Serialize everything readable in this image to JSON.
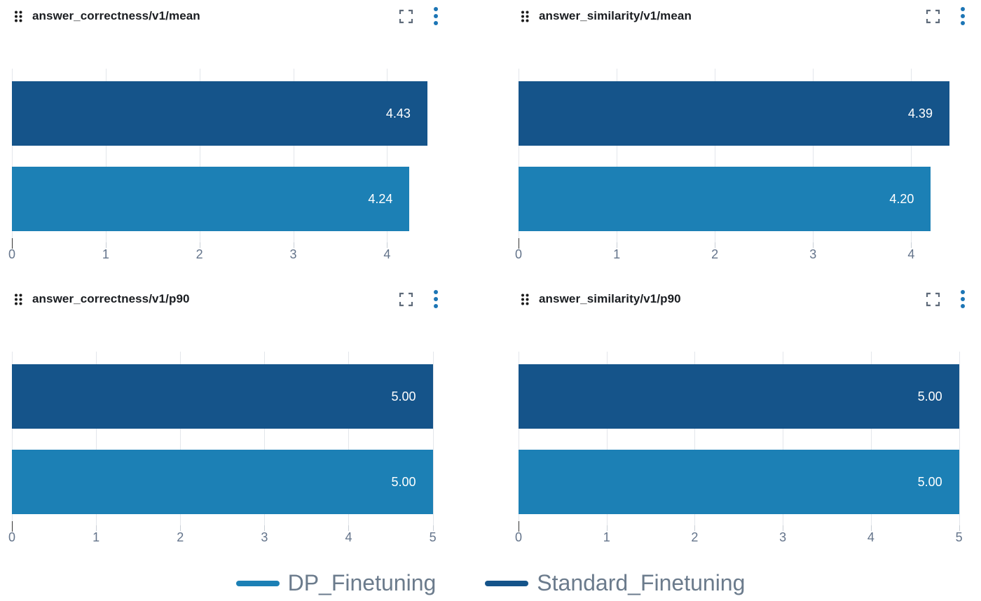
{
  "colors": {
    "dp": "#1C80B5",
    "standard": "#15548A",
    "kebab_icon": "#1C75B5",
    "fullscreen_icon": "#5F6B7A",
    "drag_handle": "#1B1B1B",
    "gridline": "#E3E6EB",
    "tick_mark": "#C9CFD6",
    "zero_tick": "#333333",
    "tick_label": "#64748B",
    "title_text": "#1A1D21",
    "value_label": "#FFFFFF",
    "legend_label": "#6B7B8C"
  },
  "icons": {
    "drag": "drag-handle-icon",
    "fullscreen": "fullscreen-icon",
    "menu": "kebab-menu-icon"
  },
  "legend": {
    "items": [
      {
        "label": "DP_Finetuning",
        "color_key": "dp"
      },
      {
        "label": "Standard_Finetuning",
        "color_key": "standard"
      }
    ]
  },
  "chart_data": [
    {
      "type": "bar",
      "orientation": "horizontal",
      "title": "answer_correctness/v1/mean",
      "xlim": [
        0,
        4.64
      ],
      "xticks": [
        "0",
        "1",
        "2",
        "3",
        "4"
      ],
      "grid": true,
      "legend_position": "bottom-shared",
      "series": [
        {
          "name": "Standard_Finetuning",
          "value": 4.43,
          "label": "4.43",
          "color_key": "standard"
        },
        {
          "name": "DP_Finetuning",
          "value": 4.24,
          "label": "4.24",
          "color_key": "dp"
        }
      ]
    },
    {
      "type": "bar",
      "orientation": "horizontal",
      "title": "answer_similarity/v1/mean",
      "xlim": [
        0,
        4.64
      ],
      "xticks": [
        "0",
        "1",
        "2",
        "3",
        "4"
      ],
      "grid": true,
      "legend_position": "bottom-shared",
      "series": [
        {
          "name": "Standard_Finetuning",
          "value": 4.39,
          "label": "4.39",
          "color_key": "standard"
        },
        {
          "name": "DP_Finetuning",
          "value": 4.2,
          "label": "4.20",
          "color_key": "dp"
        }
      ]
    },
    {
      "type": "bar",
      "orientation": "horizontal",
      "title": "answer_correctness/v1/p90",
      "xlim": [
        0,
        5.17
      ],
      "xticks": [
        "0",
        "1",
        "2",
        "3",
        "4",
        "5"
      ],
      "grid": true,
      "legend_position": "bottom-shared",
      "series": [
        {
          "name": "Standard_Finetuning",
          "value": 5.0,
          "label": "5.00",
          "color_key": "standard"
        },
        {
          "name": "DP_Finetuning",
          "value": 5.0,
          "label": "5.00",
          "color_key": "dp"
        }
      ]
    },
    {
      "type": "bar",
      "orientation": "horizontal",
      "title": "answer_similarity/v1/p90",
      "xlim": [
        0,
        5.17
      ],
      "xticks": [
        "0",
        "1",
        "2",
        "3",
        "4",
        "5"
      ],
      "grid": true,
      "legend_position": "bottom-shared",
      "series": [
        {
          "name": "Standard_Finetuning",
          "value": 5.0,
          "label": "5.00",
          "color_key": "standard"
        },
        {
          "name": "DP_Finetuning",
          "value": 5.0,
          "label": "5.00",
          "color_key": "dp"
        }
      ]
    }
  ]
}
